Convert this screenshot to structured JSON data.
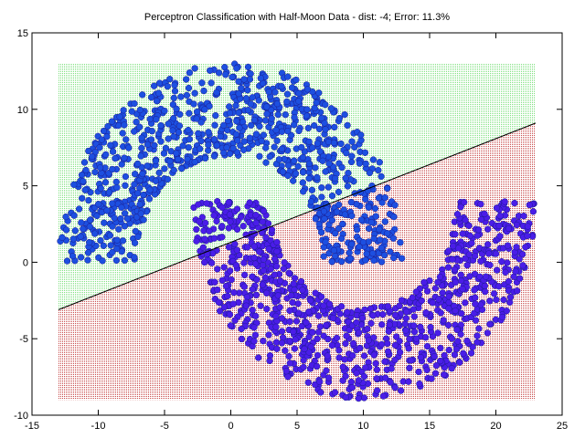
{
  "chart_data": {
    "type": "scatter",
    "title": "Perceptron Classification with Half-Moon Data - dist: -4; Error: 11.3%",
    "xlabel": "",
    "ylabel": "",
    "xlim": [
      -15,
      25
    ],
    "ylim": [
      -10,
      15
    ],
    "x_ticks": [
      "-15",
      "-10",
      "-5",
      "0",
      "5",
      "10",
      "15",
      "20",
      "25"
    ],
    "y_ticks": [
      "-10",
      "-5",
      "0",
      "5",
      "10",
      "15"
    ],
    "grid": false,
    "region_extent": {
      "x": [
        -13,
        23
      ],
      "y": [
        -9,
        13
      ]
    },
    "decision_boundary": {
      "x": [
        -13,
        23
      ],
      "y": [
        -3.1,
        9.1
      ]
    },
    "regions": [
      {
        "class": "upper",
        "color": "#7ee07e"
      },
      {
        "class": "lower",
        "color": "#c84a4a"
      }
    ],
    "series": [
      {
        "moon": "upper",
        "color": "#1d4fe0",
        "center": [
          0,
          0
        ],
        "inner_radius": 7,
        "outer_radius": 13,
        "half": "upper",
        "count": 1000
      },
      {
        "moon": "lower",
        "color": "#4a1de8",
        "center": [
          10,
          4
        ],
        "inner_radius": 7,
        "outer_radius": 13,
        "half": "lower",
        "count": 1000
      }
    ]
  }
}
